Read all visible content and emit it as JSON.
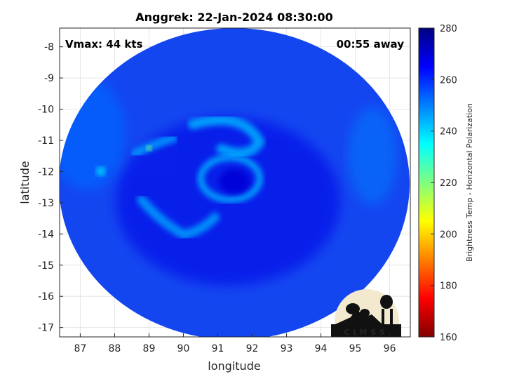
{
  "chart_data": {
    "type": "heatmap",
    "title": "Anggrek: 22-Jan-2024 08:30:00",
    "annotation_left": "Vmax: 44 kts",
    "annotation_right": "00:55 away",
    "xlabel": "longitude",
    "ylabel": "latitude",
    "xlim": [
      86.4,
      96.6
    ],
    "ylim": [
      -17.3,
      -7.4
    ],
    "xticks": [
      87,
      88,
      89,
      90,
      91,
      92,
      93,
      94,
      95,
      96
    ],
    "yticks": [
      -8,
      -9,
      -10,
      -11,
      -12,
      -13,
      -14,
      -15,
      -16,
      -17
    ],
    "grid": true,
    "colorbar": {
      "label": "Brightness Temp - Horizontal Polarization",
      "range": [
        160,
        280
      ],
      "ticks": [
        160,
        180,
        200,
        220,
        240,
        260,
        280
      ],
      "colormap": "jet"
    },
    "field": {
      "swath_center": [
        91.0,
        -12.4
      ],
      "swath_radius_deg": 5.0,
      "background_value": 262,
      "storm_center": [
        91.3,
        -12.5
      ],
      "features": [
        {
          "name": "eyewall",
          "x": 91.2,
          "y": -12.0,
          "value": 243
        },
        {
          "name": "northern band",
          "x": 91.3,
          "y": -10.6,
          "value": 244
        },
        {
          "name": "western band",
          "x": 89.0,
          "y": -11.2,
          "value": 220
        },
        {
          "name": "western spot",
          "x": 87.6,
          "y": -11.9,
          "value": 240
        },
        {
          "name": "southern band",
          "x": 89.8,
          "y": -13.8,
          "value": 245
        },
        {
          "name": "eastern fringe",
          "x": 95.5,
          "y": -11.5,
          "value": 250
        }
      ]
    },
    "logo_text": "CIMSS"
  }
}
